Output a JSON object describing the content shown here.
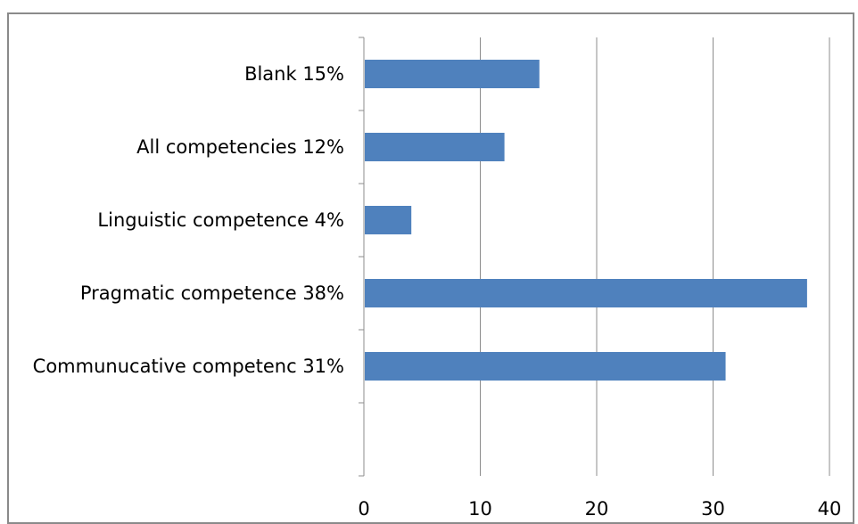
{
  "chart_data": {
    "type": "bar",
    "orientation": "horizontal",
    "categories": [
      "Blank 15%",
      "All competencies 12%",
      "Linguistic competence 4%",
      "Pragmatic competence 38%",
      "Communucative competenc 31%"
    ],
    "values": [
      15,
      12,
      4,
      38,
      31
    ],
    "xlim": [
      0,
      40
    ],
    "xticks": [
      "0",
      "10",
      "20",
      "30",
      "40"
    ],
    "grid": "vertical",
    "bar_color": "#4f81bd",
    "title": "",
    "xlabel": "",
    "ylabel": ""
  }
}
